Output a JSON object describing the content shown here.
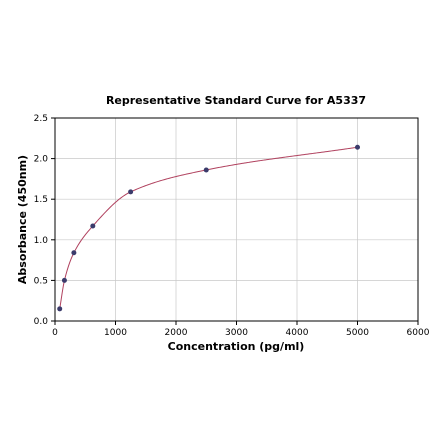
{
  "chart_data": {
    "type": "scatter",
    "title": "Representative Standard Curve for A5337",
    "xlabel": "Concentration (pg/ml)",
    "ylabel": "Absorbance (450nm)",
    "xlim": [
      0,
      6000
    ],
    "ylim": [
      0,
      2.5
    ],
    "x_ticks": [
      "0",
      "1000",
      "2000",
      "3000",
      "4000",
      "5000",
      "6000"
    ],
    "y_ticks": [
      "0.0",
      "0.5",
      "1.0",
      "1.5",
      "2.0",
      "2.5"
    ],
    "grid": true,
    "series": [
      {
        "x": [
          78,
          156,
          312,
          625,
          1250,
          2500,
          5000
        ],
        "y": [
          0.15,
          0.5,
          0.84,
          1.17,
          1.59,
          1.86,
          2.14
        ],
        "fit": "smooth-curve"
      }
    ],
    "colors": {
      "points": "#3b3b6b",
      "curve": "#b0415e",
      "grid": "#c8c8c8",
      "axes": "#000000"
    }
  }
}
